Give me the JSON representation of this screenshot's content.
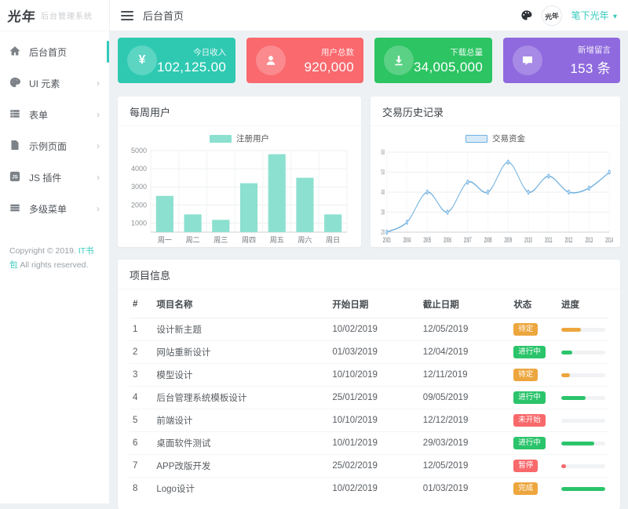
{
  "app": {
    "logo_text": "光年",
    "logo_subtitle": "后台管理系统",
    "avatar_text": "光年"
  },
  "topbar": {
    "breadcrumb": "后台首页",
    "username": "笔下光年",
    "caret": "▾",
    "icons": [
      "skin-icon",
      "avatar",
      "caret-down-icon"
    ]
  },
  "sidebar": {
    "items": [
      {
        "label": "后台首页",
        "icon": "home-icon",
        "active": true,
        "has_children": false
      },
      {
        "label": "UI 元素",
        "icon": "palette-icon",
        "active": false,
        "has_children": true
      },
      {
        "label": "表单",
        "icon": "form-icon",
        "active": false,
        "has_children": true
      },
      {
        "label": "示例页面",
        "icon": "page-icon",
        "active": false,
        "has_children": true
      },
      {
        "label": "JS 插件",
        "icon": "js-icon",
        "active": false,
        "has_children": true
      },
      {
        "label": "多级菜单",
        "icon": "menu-icon",
        "active": false,
        "has_children": true
      }
    ],
    "chevron": "›",
    "copyright": {
      "prefix": "Copyright © 2019.",
      "link": "IT书包",
      "suffix": "All rights reserved."
    }
  },
  "stat_cards": [
    {
      "icon": "yen-icon",
      "glyph": "¥",
      "label": "今日收入",
      "value": "102,125.00",
      "color": "#2fc9b2"
    },
    {
      "icon": "user-icon",
      "glyph": "",
      "label": "用户总数",
      "value": "920,000",
      "color": "#f9696e"
    },
    {
      "icon": "download-icon",
      "glyph": "",
      "label": "下载总量",
      "value": "34,005,000",
      "color": "#2dc463"
    },
    {
      "icon": "comment-icon",
      "glyph": "",
      "label": "新增留言",
      "value": "153 条",
      "color": "#8f6ade"
    }
  ],
  "chart_data": [
    {
      "type": "bar",
      "title": "每周用户",
      "legend": [
        "注册用户"
      ],
      "categories": [
        "周一",
        "周二",
        "周三",
        "周四",
        "周五",
        "周六",
        "周日"
      ],
      "values": [
        2500,
        1480,
        1180,
        3200,
        4800,
        3500,
        1480
      ],
      "ylim": [
        500,
        5000
      ],
      "yticks": [
        1000,
        2000,
        3000,
        4000,
        5000
      ],
      "bar_color": "#8ce0cf",
      "grid": true,
      "legend_position": "top"
    },
    {
      "type": "line",
      "title": "交易历史记录",
      "legend": [
        "交易资金"
      ],
      "x": [
        2003,
        2004,
        2005,
        2006,
        2007,
        2008,
        2009,
        2010,
        2011,
        2012,
        2013,
        2014
      ],
      "values": [
        20,
        25,
        40,
        30,
        45,
        40,
        55,
        40,
        48,
        40,
        42,
        50
      ],
      "ylim": [
        20,
        60
      ],
      "yticks": [
        20,
        30,
        40,
        50,
        60
      ],
      "line_color": "#6fb0e0",
      "marker_fill": "#c3ddf4",
      "legend_swatch_fill": "#d8eaf8",
      "smooth": true,
      "grid": true,
      "legend_position": "top"
    }
  ],
  "table": {
    "title": "项目信息",
    "headers": [
      "#",
      "项目名称",
      "开始日期",
      "截止日期",
      "状态",
      "进度"
    ],
    "rows": [
      {
        "num": "1",
        "name": "设计新主题",
        "start": "10/02/2019",
        "end": "12/05/2019",
        "status": "待定",
        "status_type": "warning",
        "progress": 45,
        "progress_type": "warning"
      },
      {
        "num": "2",
        "name": "网站重新设计",
        "start": "01/03/2019",
        "end": "12/04/2019",
        "status": "进行中",
        "status_type": "success",
        "progress": 25,
        "progress_type": "success"
      },
      {
        "num": "3",
        "name": "模型设计",
        "start": "10/10/2019",
        "end": "12/11/2019",
        "status": "待定",
        "status_type": "warning",
        "progress": 20,
        "progress_type": "warning"
      },
      {
        "num": "4",
        "name": "后台管理系统模板设计",
        "start": "25/01/2019",
        "end": "09/05/2019",
        "status": "进行中",
        "status_type": "success",
        "progress": 55,
        "progress_type": "success"
      },
      {
        "num": "5",
        "name": "前端设计",
        "start": "10/10/2019",
        "end": "12/12/2019",
        "status": "未开始",
        "status_type": "danger",
        "progress": 0,
        "progress_type": "success"
      },
      {
        "num": "6",
        "name": "桌面软件测试",
        "start": "10/01/2019",
        "end": "29/03/2019",
        "status": "进行中",
        "status_type": "success",
        "progress": 75,
        "progress_type": "success"
      },
      {
        "num": "7",
        "name": "APP改版开发",
        "start": "25/02/2019",
        "end": "12/05/2019",
        "status": "暂停",
        "status_type": "danger",
        "progress": 10,
        "progress_type": "danger"
      },
      {
        "num": "8",
        "name": "Logo设计",
        "start": "10/02/2019",
        "end": "01/03/2019",
        "status": "完成",
        "status_type": "warning",
        "progress": 100,
        "progress_type": "success"
      }
    ]
  },
  "theme": {
    "primary": "#33cabb",
    "warning": "#eda63e",
    "success": "#2bc46b",
    "danger": "#f8696c"
  }
}
